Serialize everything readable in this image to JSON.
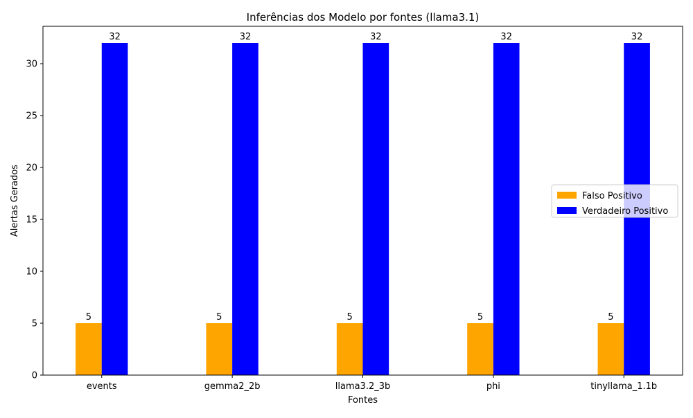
{
  "chart_data": {
    "type": "bar",
    "title": "Inferências dos Modelo por fontes (llama3.1)",
    "xlabel": "Fontes",
    "ylabel": "Alertas Gerados",
    "categories": [
      "events",
      "gemma2_2b",
      "llama3.2_3b",
      "phi",
      "tinyllama_1.1b"
    ],
    "series": [
      {
        "name": "Falso Positivo",
        "color": "#FFA500",
        "values": [
          5,
          5,
          5,
          5,
          5
        ]
      },
      {
        "name": "Verdadeiro Positivo",
        "color": "#0000FF",
        "values": [
          32,
          32,
          32,
          32,
          32
        ]
      }
    ],
    "ylim": [
      0,
      33.6
    ],
    "yticks": [
      0,
      5,
      10,
      15,
      20,
      25,
      30
    ],
    "grid": false,
    "legend_position": "center-right"
  }
}
